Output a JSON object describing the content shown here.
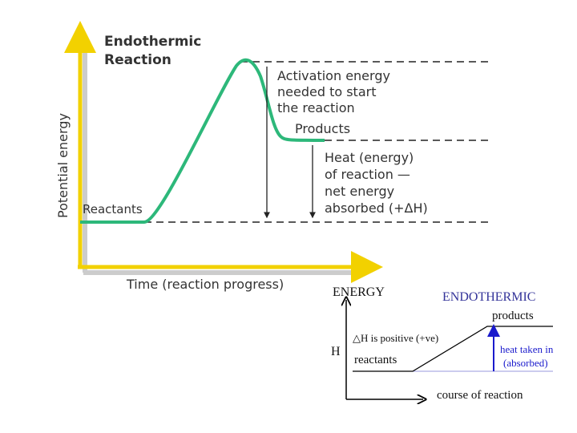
{
  "top": {
    "title": [
      "Endothermic",
      "Reaction"
    ],
    "y_axis": "Potential energy",
    "x_axis": "Time (reaction progress)",
    "reactants": "Reactants",
    "products": "Products",
    "activation": [
      "Activation energy",
      "needed to start",
      "the reaction"
    ],
    "heat": [
      "Heat (energy)",
      "of reaction —",
      "net energy",
      "absorbed (+ΔH)"
    ]
  },
  "bottom": {
    "y_axis": "ENERGY",
    "title": "ENDOTHERMIC",
    "products": "products",
    "delta": "△H is positive (+ve)",
    "h": "H",
    "reactants": "reactants",
    "heat": [
      "heat taken in",
      "(absorbed)"
    ],
    "x_axis": "course of reaction"
  }
}
